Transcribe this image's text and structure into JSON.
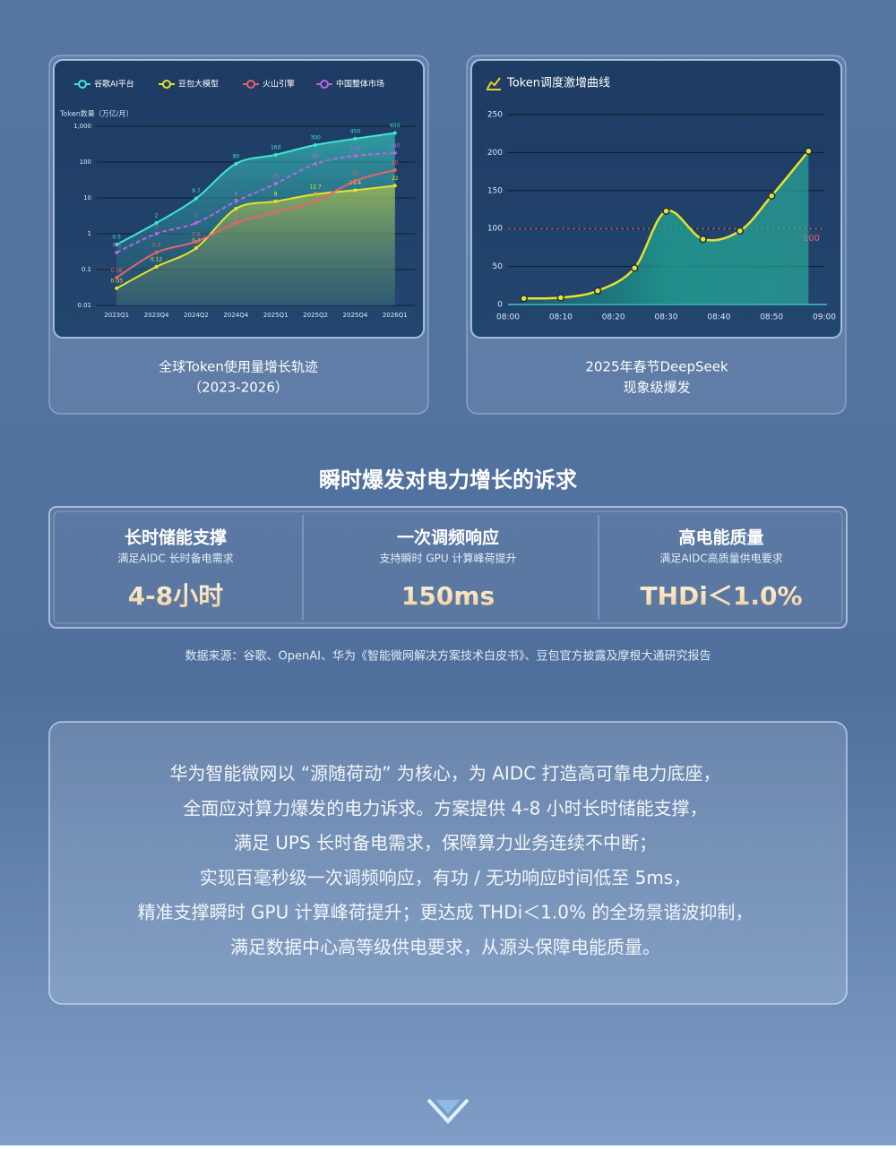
{
  "chart_data": [
    {
      "type": "line",
      "title": "全球Token使用量增长轨迹",
      "subtitle": "（2023-2026）",
      "y_label": "Token数量（万亿/月）",
      "log_scale": true,
      "categories": [
        "2023Q1",
        "2023Q4",
        "2024Q2",
        "2024Q4",
        "2025Q1",
        "2025Q2",
        "2025Q4",
        "2026Q1"
      ],
      "series": [
        {
          "name": "谷歌AI平台",
          "color": "#3ee6d2",
          "area": true,
          "values": [
            0.5,
            2,
            9.7,
            90,
            160,
            300,
            450,
            650
          ]
        },
        {
          "name": "豆包大模型",
          "color": "#e8e22c",
          "area": true,
          "values": [
            0.03,
            0.12,
            0.4,
            5,
            8,
            12.7,
            16.4,
            22
          ]
        },
        {
          "name": "火山引擎",
          "color": "#e8626a",
          "values": [
            0.06,
            0.3,
            0.6,
            2,
            4,
            8,
            30,
            60
          ]
        },
        {
          "name": "中国整体市场",
          "color": "#b866e0",
          "dashed": true,
          "values": [
            0.3,
            1,
            2,
            8,
            25,
            90,
            150,
            180
          ]
        }
      ],
      "ylim": [
        0.01,
        1000
      ],
      "yticks": [
        0.01,
        0.1,
        1,
        10,
        100,
        {
          "value": 1000,
          "label": "1,000"
        }
      ],
      "grid": true
    },
    {
      "type": "line",
      "title": "Token调度激增曲线",
      "caption": [
        "2025年春节DeepSeek",
        "现象级爆发"
      ],
      "color": "#e8e22c",
      "x": [
        "08:03",
        "08:10",
        "08:17",
        "08:24",
        "08:30",
        "08:37",
        "08:44",
        "08:50",
        "08:57"
      ],
      "values": [
        8,
        9,
        18,
        48,
        123,
        86,
        97,
        143,
        202
      ],
      "xlim": [
        "08:00",
        "09:00"
      ],
      "xticks": [
        "08:00",
        "08:10",
        "08:20",
        "08:30",
        "08:40",
        "08:50",
        "09:00"
      ],
      "ylim": [
        0,
        250
      ],
      "yticks": [
        0,
        50,
        100,
        150,
        200,
        250
      ],
      "grid": true,
      "threshold": 100,
      "threshold_color": "#e8626a"
    }
  ],
  "section_title": "瞬时爆发对电力增长的诉求",
  "cards": [
    {
      "title": "长时储能支撑",
      "subtitle": "满足AIDC 长时备电需求",
      "value": "4-8小时"
    },
    {
      "title": "一次调频响应",
      "subtitle": "支持瞬时 GPU 计算峰荷提升",
      "value": "150ms"
    },
    {
      "title": "高电能质量",
      "subtitle": "满足AIDC高质量供电要求",
      "value": "THDi＜1.0%"
    }
  ],
  "source": "数据来源：谷歌、OpenAI、华为《智能微网解决方案技术白皮书》、豆包官方披露及摩根大通研究报告",
  "paragraph": [
    "华为智能微网以 “源随荷动” 为核心，为 AIDC 打造高可靠电力底座，",
    "全面应对算力爆发的电力诉求。方案提供 4-8 小时长时储能支撑，",
    "满足 UPS 长时备电需求，保障算力业务连续不中断；",
    "实现百毫秒级一次调频响应，有功 / 无功响应时间低至 5ms，",
    "精准支撑瞬时 GPU 计算峰荷提升；更达成 THDi＜1.0% 的全场景谐波抑制，",
    "满足数据中心高等级供电要求，从源头保障电能质量。"
  ]
}
